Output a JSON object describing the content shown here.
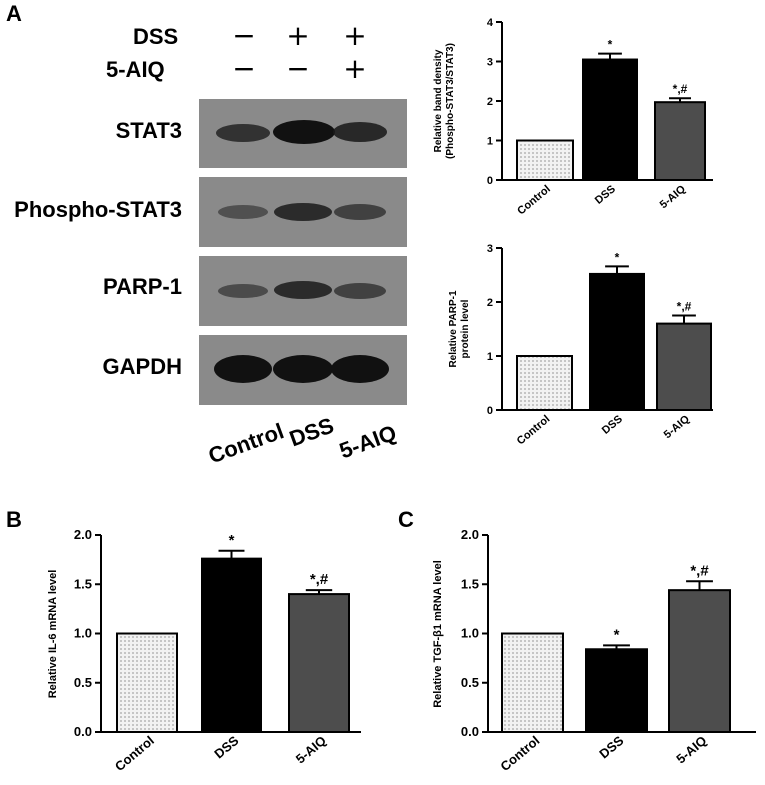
{
  "panels": {
    "a": "A",
    "b": "B",
    "c": "C"
  },
  "western_blot": {
    "treatments": [
      {
        "name": "DSS",
        "signs": [
          "−",
          "+",
          "+"
        ]
      },
      {
        "name": "5-AIQ",
        "signs": [
          "−",
          "−",
          "+"
        ]
      }
    ],
    "rows": [
      {
        "label": "STAT3",
        "band_intensity": [
          0.78,
          1.0,
          0.88
        ]
      },
      {
        "label": "Phospho-STAT3",
        "band_intensity": [
          0.6,
          0.85,
          0.7
        ]
      },
      {
        "label": "PARP-1",
        "band_intensity": [
          0.65,
          0.85,
          0.7
        ]
      },
      {
        "label": "GAPDH",
        "band_intensity": [
          1.0,
          1.0,
          1.0
        ]
      }
    ],
    "lanes": [
      "Control",
      "DSS",
      "5-AIQ"
    ]
  },
  "chart_data": [
    {
      "id": "pstat3",
      "type": "bar",
      "categories": [
        "Control",
        "DSS",
        "5-AIQ"
      ],
      "values": [
        1.0,
        3.05,
        1.97
      ],
      "errors": [
        0,
        0.15,
        0.1
      ],
      "annotations": [
        "",
        "*",
        "*,#"
      ],
      "ylabel": [
        "Relative band density",
        "(Phospho-STAT3/STAT3)"
      ],
      "ylim": [
        0,
        4
      ],
      "ticks": [
        0,
        1,
        2,
        3,
        4
      ],
      "tick_labels": [
        "0",
        "1",
        "2",
        "3",
        "4"
      ]
    },
    {
      "id": "parp1",
      "type": "bar",
      "categories": [
        "Control",
        "DSS",
        "5-AIQ"
      ],
      "values": [
        1.0,
        2.52,
        1.6
      ],
      "errors": [
        0,
        0.14,
        0.15
      ],
      "annotations": [
        "",
        "*",
        "*,#"
      ],
      "ylabel": [
        "Relative PARP-1",
        "protein level"
      ],
      "ylim": [
        0,
        3
      ],
      "ticks": [
        0,
        1,
        2,
        3
      ],
      "tick_labels": [
        "0",
        "1",
        "2",
        "3"
      ]
    },
    {
      "id": "il6",
      "type": "bar",
      "categories": [
        "Control",
        "DSS",
        "5-AIQ"
      ],
      "values": [
        1.0,
        1.76,
        1.4
      ],
      "errors": [
        0,
        0.08,
        0.04
      ],
      "annotations": [
        "",
        "*",
        "*,#"
      ],
      "ylabel": [
        "Relative IL-6 mRNA level"
      ],
      "ylim": [
        0,
        2.0
      ],
      "ticks": [
        0,
        0.5,
        1.0,
        1.5,
        2.0
      ],
      "tick_labels": [
        "0.0",
        "0.5",
        "1.0",
        "1.5",
        "2.0"
      ]
    },
    {
      "id": "tgfb1",
      "type": "bar",
      "categories": [
        "Control",
        "DSS",
        "5-AIQ"
      ],
      "values": [
        1.0,
        0.84,
        1.44
      ],
      "errors": [
        0,
        0.04,
        0.09
      ],
      "annotations": [
        "",
        "*",
        "*,#"
      ],
      "ylabel": [
        "Relative TGF-β1 mRNA level"
      ],
      "ylim": [
        0,
        2.0
      ],
      "ticks": [
        0,
        0.5,
        1.0,
        1.5,
        2.0
      ],
      "tick_labels": [
        "0.0",
        "0.5",
        "1.0",
        "1.5",
        "2.0"
      ]
    }
  ],
  "colors": {
    "control_fill": "#f2f2f2",
    "dss_fill": "#000000",
    "aiq_fill": "#4d4d4d",
    "blot_background": "#8a8a8a",
    "band": "#1a1a1a"
  }
}
